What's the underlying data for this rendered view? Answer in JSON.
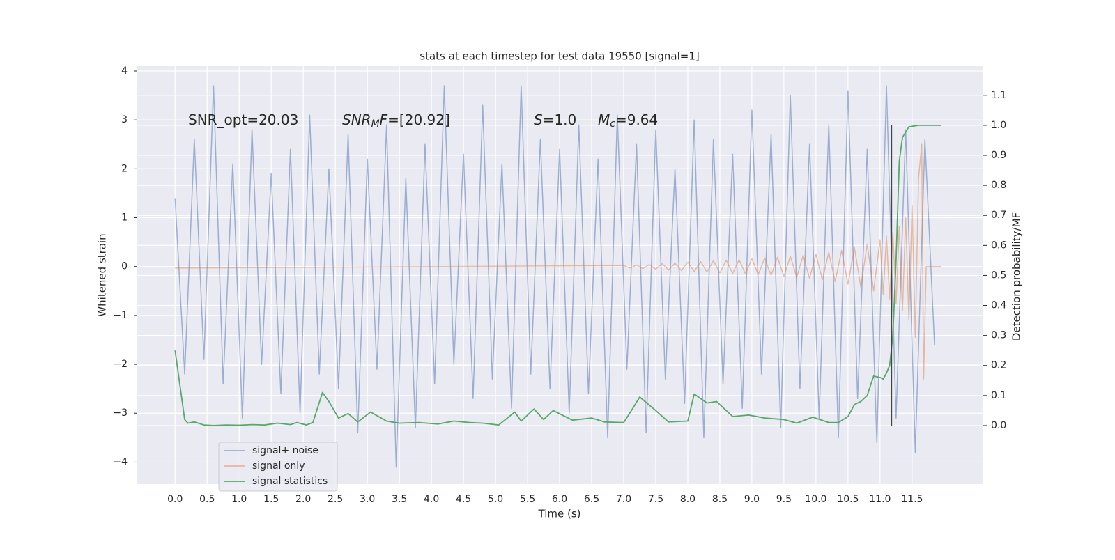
{
  "chart_data": {
    "type": "line",
    "title": "stats at each timestep for test data 19550 [signal=1]",
    "x_label": "Time (s)",
    "y_label": "Whitened strain",
    "y2_label": "Detection probability/MF",
    "annotations": [
      [
        "SNR_opt=20.03"
      ],
      [
        "SNR",
        "M",
        "F",
        "=[20.92]"
      ],
      [
        "S",
        "=1.0"
      ],
      [
        "M",
        "c",
        "=9.64"
      ]
    ],
    "xlim": [
      -0.59,
      12.6
    ],
    "ylim": [
      -4.45,
      4.1
    ],
    "y2lim": [
      -0.195,
      1.197
    ],
    "xticks": [
      {
        "value": 0,
        "label": "0.0"
      },
      0.5,
      {
        "value": 1,
        "label": "1.0"
      },
      1.5,
      {
        "value": 2,
        "label": "2.0"
      },
      2.5,
      {
        "value": 3,
        "label": "3.0"
      },
      3.5,
      {
        "value": 4,
        "label": "4.0"
      },
      4.5,
      {
        "value": 5,
        "label": "5.0"
      },
      5.5,
      {
        "value": 6,
        "label": "6.0"
      },
      6.5,
      {
        "value": 7,
        "label": "7.0"
      },
      7.5,
      {
        "value": 8,
        "label": "8.0"
      },
      8.5,
      {
        "value": 9,
        "label": "9.0"
      },
      9.5,
      {
        "value": 10,
        "label": "10.0"
      },
      10.5,
      {
        "value": 11,
        "label": "11.0"
      },
      11.5
    ],
    "yticks": [
      {
        "value": -4,
        "label": "−4"
      },
      {
        "value": -3,
        "label": "−3"
      },
      {
        "value": -2,
        "label": "−2"
      },
      {
        "value": -1,
        "label": "−1"
      },
      0,
      1,
      2,
      3,
      4
    ],
    "y2ticks": [
      {
        "value": 0,
        "label": "0.0"
      },
      0.1,
      0.2,
      0.3,
      0.4,
      0.5,
      0.6,
      0.7,
      0.8,
      0.9,
      {
        "value": 1,
        "label": "1.0"
      },
      1.1
    ],
    "grid": true,
    "legend": "lower left",
    "series": [
      {
        "name": "signal+ noise",
        "color": "#4c72b0",
        "opacity": 0.5,
        "x": [
          0,
          0.15,
          0.3,
          0.45,
          0.6,
          0.75,
          0.9,
          1.05,
          1.2,
          1.35,
          1.5,
          1.65,
          1.8,
          1.95,
          2.1,
          2.25,
          2.4,
          2.55,
          2.7,
          2.85,
          3,
          3.15,
          3.3,
          3.45,
          3.6,
          3.75,
          3.9,
          4.05,
          4.2,
          4.35,
          4.5,
          4.65,
          4.8,
          4.95,
          5.1,
          5.25,
          5.4,
          5.55,
          5.7,
          5.85,
          6,
          6.15,
          6.3,
          6.45,
          6.6,
          6.75,
          6.9,
          7.05,
          7.2,
          7.35,
          7.5,
          7.65,
          7.8,
          7.95,
          8.1,
          8.25,
          8.4,
          8.55,
          8.7,
          8.85,
          9,
          9.15,
          9.3,
          9.45,
          9.6,
          9.75,
          9.9,
          10.05,
          10.2,
          10.35,
          10.5,
          10.65,
          10.8,
          10.95,
          11.1,
          11.25,
          11.4,
          11.55,
          11.7,
          11.85
        ],
        "values": [
          1.4,
          -2.2,
          2.6,
          -1.9,
          3.7,
          -2.4,
          2.1,
          -3.1,
          2.8,
          -2.0,
          1.9,
          -2.6,
          2.4,
          -3.0,
          3.1,
          -2.2,
          2.0,
          -2.5,
          2.7,
          -3.4,
          2.2,
          -2.1,
          2.9,
          -4.1,
          1.8,
          -3.3,
          2.5,
          -2.4,
          3.7,
          -2.0,
          2.3,
          -2.7,
          3.3,
          -2.3,
          2.1,
          -2.9,
          3.7,
          -2.2,
          2.6,
          -2.5,
          2.4,
          -3.0,
          2.9,
          -2.6,
          2.2,
          -3.5,
          3.1,
          -2.1,
          2.5,
          -3.4,
          2.8,
          -2.3,
          2.0,
          -2.8,
          3.0,
          -3.5,
          2.6,
          -2.4,
          2.3,
          -2.9,
          3.2,
          -2.2,
          2.7,
          -3.3,
          3.5,
          -2.5,
          2.5,
          -3.1,
          2.9,
          -3.5,
          3.6,
          -2.7,
          2.4,
          -3.6,
          3.7,
          -3.1,
          2.8,
          -3.8,
          2.6,
          -1.6
        ]
      },
      {
        "name": "signal only",
        "color": "#dd8452",
        "opacity": 0.5,
        "x": [
          0,
          7.0,
          7.1,
          7.2,
          7.3,
          7.4,
          7.5,
          7.6,
          7.7,
          7.8,
          7.9,
          8.0,
          8.1,
          8.2,
          8.3,
          8.4,
          8.5,
          8.6,
          8.7,
          8.8,
          8.9,
          9.0,
          9.1,
          9.2,
          9.3,
          9.4,
          9.5,
          9.6,
          9.7,
          9.8,
          9.9,
          10.0,
          10.1,
          10.2,
          10.3,
          10.4,
          10.5,
          10.6,
          10.7,
          10.8,
          10.9,
          11.0,
          11.05,
          11.1,
          11.15,
          11.2,
          11.25,
          11.3,
          11.35,
          11.4,
          11.45,
          11.5,
          11.55,
          11.6,
          11.65,
          11.68,
          11.72,
          11.95
        ],
        "values": [
          -0.03,
          0.02,
          -0.03,
          0.03,
          -0.04,
          0.04,
          -0.05,
          0.06,
          -0.07,
          0.07,
          -0.08,
          0.09,
          -0.1,
          0.1,
          -0.11,
          0.12,
          -0.13,
          0.13,
          -0.14,
          0.14,
          -0.15,
          0.16,
          -0.16,
          0.17,
          -0.18,
          0.19,
          -0.2,
          0.21,
          -0.22,
          0.23,
          -0.24,
          0.25,
          -0.27,
          0.29,
          -0.31,
          0.33,
          -0.36,
          0.39,
          -0.42,
          0.46,
          -0.5,
          0.55,
          -0.58,
          0.62,
          -0.66,
          0.7,
          -0.76,
          0.82,
          -0.9,
          1.0,
          -1.1,
          1.25,
          -1.45,
          1.8,
          2.5,
          -2.3,
          0.0,
          0.0
        ]
      },
      {
        "name": "signal statistics",
        "color": "#55a868",
        "opacity": 1,
        "axis": "y2",
        "x": [
          0,
          0.15,
          0.2,
          0.3,
          0.45,
          0.6,
          0.8,
          1.0,
          1.2,
          1.4,
          1.6,
          1.8,
          1.9,
          2.05,
          2.15,
          2.3,
          2.4,
          2.55,
          2.7,
          2.85,
          3.05,
          3.3,
          3.5,
          3.8,
          4.1,
          4.35,
          4.6,
          4.8,
          5.05,
          5.3,
          5.4,
          5.6,
          5.75,
          5.9,
          6.2,
          6.5,
          6.7,
          7.0,
          7.15,
          7.25,
          7.5,
          7.7,
          8.0,
          8.1,
          8.2,
          8.3,
          8.45,
          8.7,
          8.95,
          9.2,
          9.5,
          9.7,
          9.95,
          10.2,
          10.35,
          10.5,
          10.6,
          10.7,
          10.8,
          10.9,
          11.0,
          11.05,
          11.1,
          11.15,
          11.2,
          11.25,
          11.3,
          11.35,
          11.45,
          11.6,
          11.95
        ],
        "values": [
          0.25,
          0.02,
          0.008,
          0.012,
          0.002,
          0.0,
          0.002,
          0.001,
          0.003,
          0.002,
          0.008,
          0.003,
          0.01,
          0.002,
          0.01,
          0.11,
          0.08,
          0.025,
          0.04,
          0.012,
          0.045,
          0.015,
          0.008,
          0.01,
          0.005,
          0.015,
          0.01,
          0.008,
          0.002,
          0.045,
          0.015,
          0.055,
          0.02,
          0.05,
          0.018,
          0.025,
          0.012,
          0.01,
          0.06,
          0.095,
          0.05,
          0.012,
          0.015,
          0.105,
          0.09,
          0.075,
          0.08,
          0.03,
          0.035,
          0.025,
          0.02,
          0.008,
          0.028,
          0.01,
          0.01,
          0.03,
          0.07,
          0.08,
          0.1,
          0.165,
          0.16,
          0.155,
          0.175,
          0.2,
          0.3,
          0.55,
          0.88,
          0.96,
          0.995,
          1.0,
          1.0
        ]
      }
    ],
    "vline": {
      "x": 11.18,
      "y2": [
        0.0,
        1.0
      ],
      "color": "#444444"
    }
  }
}
